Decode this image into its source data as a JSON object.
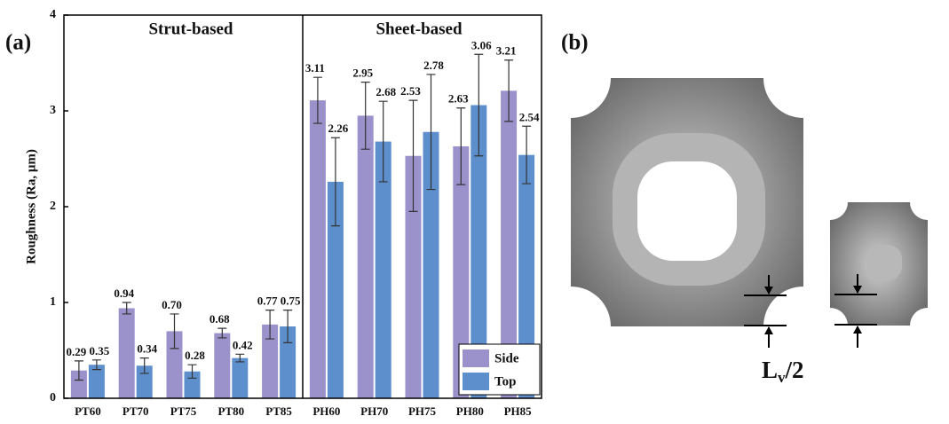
{
  "chart_data": {
    "type": "bar",
    "ylabel": "Roughness (Ra, μm)",
    "categories": [
      "PT60",
      "PT70",
      "PT75",
      "PT80",
      "PT85",
      "PH60",
      "PH70",
      "PH75",
      "PH80",
      "PH85"
    ],
    "series": [
      {
        "name": "Side",
        "color": "#9b91cb",
        "values": [
          0.29,
          0.94,
          0.7,
          0.68,
          0.77,
          3.11,
          2.95,
          2.53,
          2.63,
          3.21
        ],
        "value_labels": [
          "0.29",
          "0.94",
          "0.70",
          "0.68",
          "0.77",
          "3.11",
          "2.95",
          "2.53",
          "2.63",
          "3.21"
        ],
        "errors": [
          0.1,
          0.06,
          0.18,
          0.05,
          0.15,
          0.24,
          0.35,
          0.58,
          0.4,
          0.32
        ]
      },
      {
        "name": "Top",
        "color": "#5d8fcc",
        "values": [
          0.35,
          0.34,
          0.28,
          0.42,
          0.75,
          2.26,
          2.68,
          2.78,
          3.06,
          2.54
        ],
        "value_labels": [
          "0.35",
          "0.34",
          "0.28",
          "0.42",
          "0.75",
          "2.26",
          "2.68",
          "2.78",
          "3.06",
          "2.54"
        ],
        "errors": [
          0.05,
          0.08,
          0.07,
          0.04,
          0.17,
          0.46,
          0.42,
          0.6,
          0.53,
          0.3
        ]
      }
    ],
    "ylim": [
      0,
      4
    ],
    "yticks": [
      0,
      1,
      2,
      3,
      4
    ],
    "legend": "lower right",
    "annotations": {
      "panel": "(a)",
      "group_left": "Strut-based",
      "group_right": "Sheet-based"
    }
  },
  "panel_b": {
    "panel": "(b)",
    "dimension_label": {
      "symbol": "L",
      "subscript": "v",
      "suffix": "/2"
    }
  }
}
